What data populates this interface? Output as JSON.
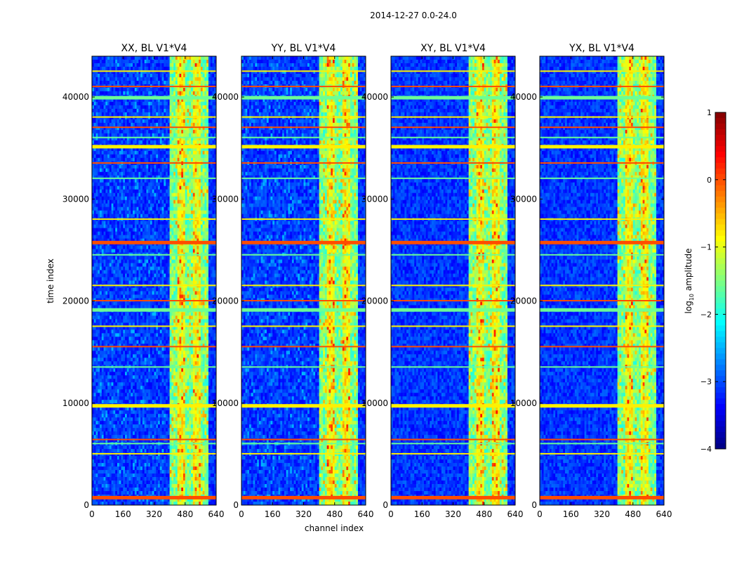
{
  "figure_title": "2014-12-27 0.0-24.0",
  "chart_data": {
    "type": "heatmap",
    "suptitle": "2014-12-27 0.0-24.0",
    "xlabel": "channel index",
    "ylabel": "time index",
    "x_range": [
      0,
      640
    ],
    "y_range": [
      0,
      44000
    ],
    "x_ticks": [
      0,
      160,
      320,
      480,
      640
    ],
    "y_ticks": [
      0,
      10000,
      20000,
      30000,
      40000
    ],
    "x_tick_labels": [
      "0",
      "160",
      "320",
      "480",
      "640"
    ],
    "y_tick_labels": [
      "0",
      "10000",
      "20000",
      "30000",
      "40000"
    ],
    "colorbar": {
      "label": "log",
      "label_sub": "10",
      "label_rest": " amplitude",
      "range": [
        -4,
        1
      ],
      "ticks": [
        1,
        0,
        -1,
        -2,
        -3,
        -4
      ],
      "tick_labels": [
        "1",
        "0",
        "−1",
        "−2",
        "−3",
        "−4"
      ],
      "colormap": "jet"
    },
    "panels": [
      {
        "title": "XX, BL V1*V4",
        "pol": "XX"
      },
      {
        "title": "YY, BL V1*V4",
        "pol": "YY"
      },
      {
        "title": "XY, BL V1*V4",
        "pol": "XY"
      },
      {
        "title": "YX, BL V1*V4",
        "pol": "YX"
      }
    ],
    "signal_band_channels": [
      400,
      600
    ],
    "rfi_time_rows": [
      800,
      5000,
      6000,
      6400,
      9800,
      13500,
      15500,
      17500,
      19200,
      20000,
      21500,
      24500,
      25800,
      28000,
      32000,
      33500,
      35200,
      36000,
      37000,
      38000,
      40000,
      41000,
      42500
    ]
  }
}
